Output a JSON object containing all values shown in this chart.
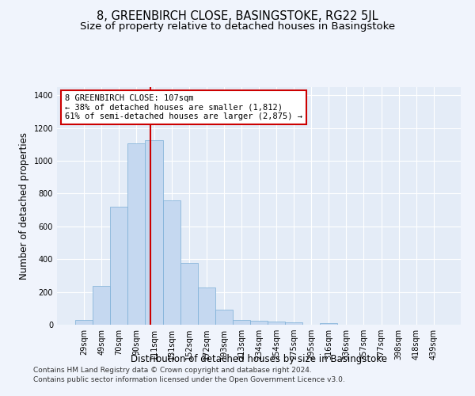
{
  "title": "8, GREENBIRCH CLOSE, BASINGSTOKE, RG22 5JL",
  "subtitle": "Size of property relative to detached houses in Basingstoke",
  "xlabel": "Distribution of detached houses by size in Basingstoke",
  "ylabel": "Number of detached properties",
  "bar_labels": [
    "29sqm",
    "49sqm",
    "70sqm",
    "90sqm",
    "111sqm",
    "131sqm",
    "152sqm",
    "172sqm",
    "193sqm",
    "213sqm",
    "234sqm",
    "254sqm",
    "275sqm",
    "295sqm",
    "316sqm",
    "336sqm",
    "357sqm",
    "377sqm",
    "398sqm",
    "418sqm",
    "439sqm"
  ],
  "bar_values": [
    30,
    235,
    720,
    1105,
    1125,
    760,
    375,
    225,
    90,
    30,
    25,
    20,
    15,
    0,
    10,
    0,
    0,
    0,
    0,
    0,
    0
  ],
  "bar_color": "#c5d8f0",
  "bar_edge_color": "#7aaed6",
  "property_line_color": "#cc0000",
  "annotation_text": "8 GREENBIRCH CLOSE: 107sqm\n← 38% of detached houses are smaller (1,812)\n61% of semi-detached houses are larger (2,875) →",
  "annotation_box_facecolor": "#ffffff",
  "annotation_box_edgecolor": "#cc0000",
  "ylim": [
    0,
    1450
  ],
  "yticks": [
    0,
    200,
    400,
    600,
    800,
    1000,
    1200,
    1400
  ],
  "bg_color": "#f0f4fc",
  "plot_bg_color": "#e4ecf7",
  "grid_color": "#ffffff",
  "footer_line1": "Contains HM Land Registry data © Crown copyright and database right 2024.",
  "footer_line2": "Contains public sector information licensed under the Open Government Licence v3.0.",
  "title_fontsize": 10.5,
  "subtitle_fontsize": 9.5,
  "xlabel_fontsize": 8.5,
  "ylabel_fontsize": 8.5,
  "tick_fontsize": 7,
  "annotation_fontsize": 7.5,
  "footer_fontsize": 6.5
}
